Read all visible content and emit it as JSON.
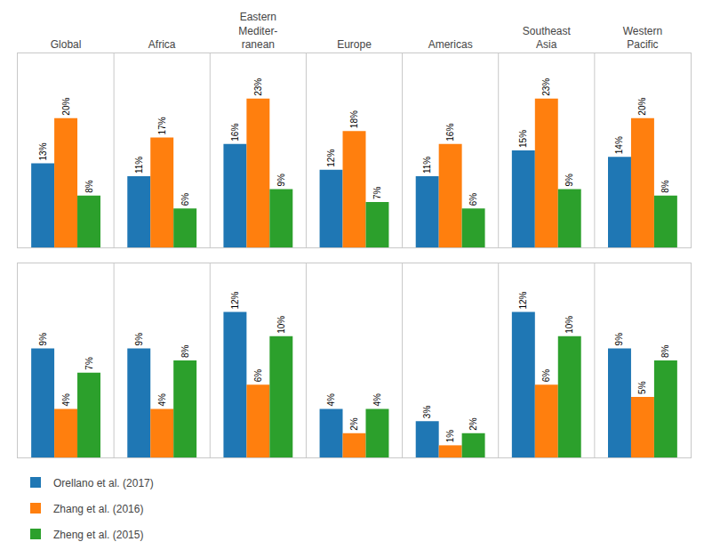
{
  "chart_data": [
    {
      "type": "bar",
      "categories": [
        "Global",
        "Africa",
        "Eastern\nMediter-\nranean",
        "Europe",
        "Americas",
        "Southeast\nAsia",
        "Western\nPacific"
      ],
      "series": [
        {
          "name": "Orellano et al. (2017)",
          "values": [
            13,
            11,
            16,
            12,
            11,
            15,
            14
          ],
          "value_labels": [
            "13%",
            "11%",
            "16%",
            "12%",
            "11%",
            "15%",
            "14%"
          ]
        },
        {
          "name": "Zhang et al. (2016)",
          "values": [
            20,
            17,
            23,
            18,
            16,
            23,
            20
          ],
          "value_labels": [
            "20%",
            "17%",
            "23%",
            "18%",
            "16%",
            "23%",
            "20%"
          ]
        },
        {
          "name": "Zheng et al. (2015)",
          "values": [
            8,
            6,
            9,
            7,
            6,
            9,
            8
          ],
          "value_labels": [
            "8%",
            "6%",
            "9%",
            "7%",
            "6%",
            "9%",
            "8%"
          ]
        }
      ],
      "ylim": [
        0,
        30
      ],
      "grid": true,
      "data_labels": true,
      "tick_labels": "x"
    },
    {
      "type": "bar",
      "categories": [
        "Global",
        "Africa",
        "Eastern\nMediter-\nranean",
        "Europe",
        "Americas",
        "Southeast\nAsia",
        "Western\nPacific"
      ],
      "series": [
        {
          "name": "Orellano et al. (2017)",
          "values": [
            9,
            9,
            12,
            4,
            3,
            12,
            9
          ],
          "value_labels": [
            "9%",
            "9%",
            "12%",
            "4%",
            "3%",
            "12%",
            "9%"
          ]
        },
        {
          "name": "Zhang et al. (2016)",
          "values": [
            4,
            4,
            6,
            2,
            1,
            6,
            5
          ],
          "value_labels": [
            "4%",
            "4%",
            "6%",
            "2%",
            "1%",
            "6%",
            "5%"
          ]
        },
        {
          "name": "Zheng et al. (2015)",
          "values": [
            7,
            8,
            10,
            4,
            2,
            10,
            8
          ],
          "value_labels": [
            "7%",
            "8%",
            "10%",
            "4%",
            "2%",
            "10%",
            "8%"
          ]
        }
      ],
      "ylim": [
        0,
        16
      ],
      "grid": true,
      "data_labels": true,
      "tick_labels": false,
      "legend": "lower left"
    }
  ]
}
